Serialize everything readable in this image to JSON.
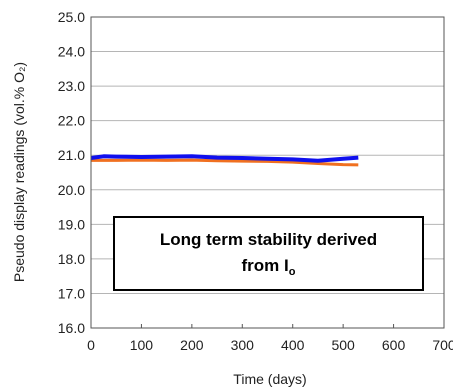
{
  "chart_data": {
    "type": "line",
    "title": "",
    "xlabel": "Time (days)",
    "ylabel": "Pseudo display readings (vol.% O₂)",
    "xlim": [
      0,
      700
    ],
    "ylim": [
      16.0,
      25.0
    ],
    "x_ticks": [
      "0",
      "100",
      "200",
      "300",
      "400",
      "500",
      "600",
      "700"
    ],
    "y_ticks": [
      "16.0",
      "17.0",
      "18.0",
      "19.0",
      "20.0",
      "21.0",
      "22.0",
      "23.0",
      "24.0",
      "25.0"
    ],
    "grid": "horizontal",
    "series": [
      {
        "color": "#f07020",
        "x": [
          0,
          50,
          100,
          150,
          200,
          250,
          300,
          350,
          400,
          450,
          500,
          530
        ],
        "y": [
          20.85,
          20.85,
          20.86,
          20.85,
          20.86,
          20.84,
          20.83,
          20.82,
          20.8,
          20.76,
          20.73,
          20.72
        ]
      },
      {
        "color": "#1010ee",
        "x": [
          0,
          25,
          50,
          100,
          150,
          200,
          250,
          300,
          350,
          400,
          450,
          500,
          530
        ],
        "y": [
          20.92,
          20.97,
          20.96,
          20.95,
          20.96,
          20.97,
          20.93,
          20.92,
          20.9,
          20.88,
          20.84,
          20.9,
          20.93
        ]
      }
    ],
    "annotation": {
      "line1": "Long term stability derived",
      "line2_prefix": "from I",
      "line2_subscript": "o"
    }
  }
}
